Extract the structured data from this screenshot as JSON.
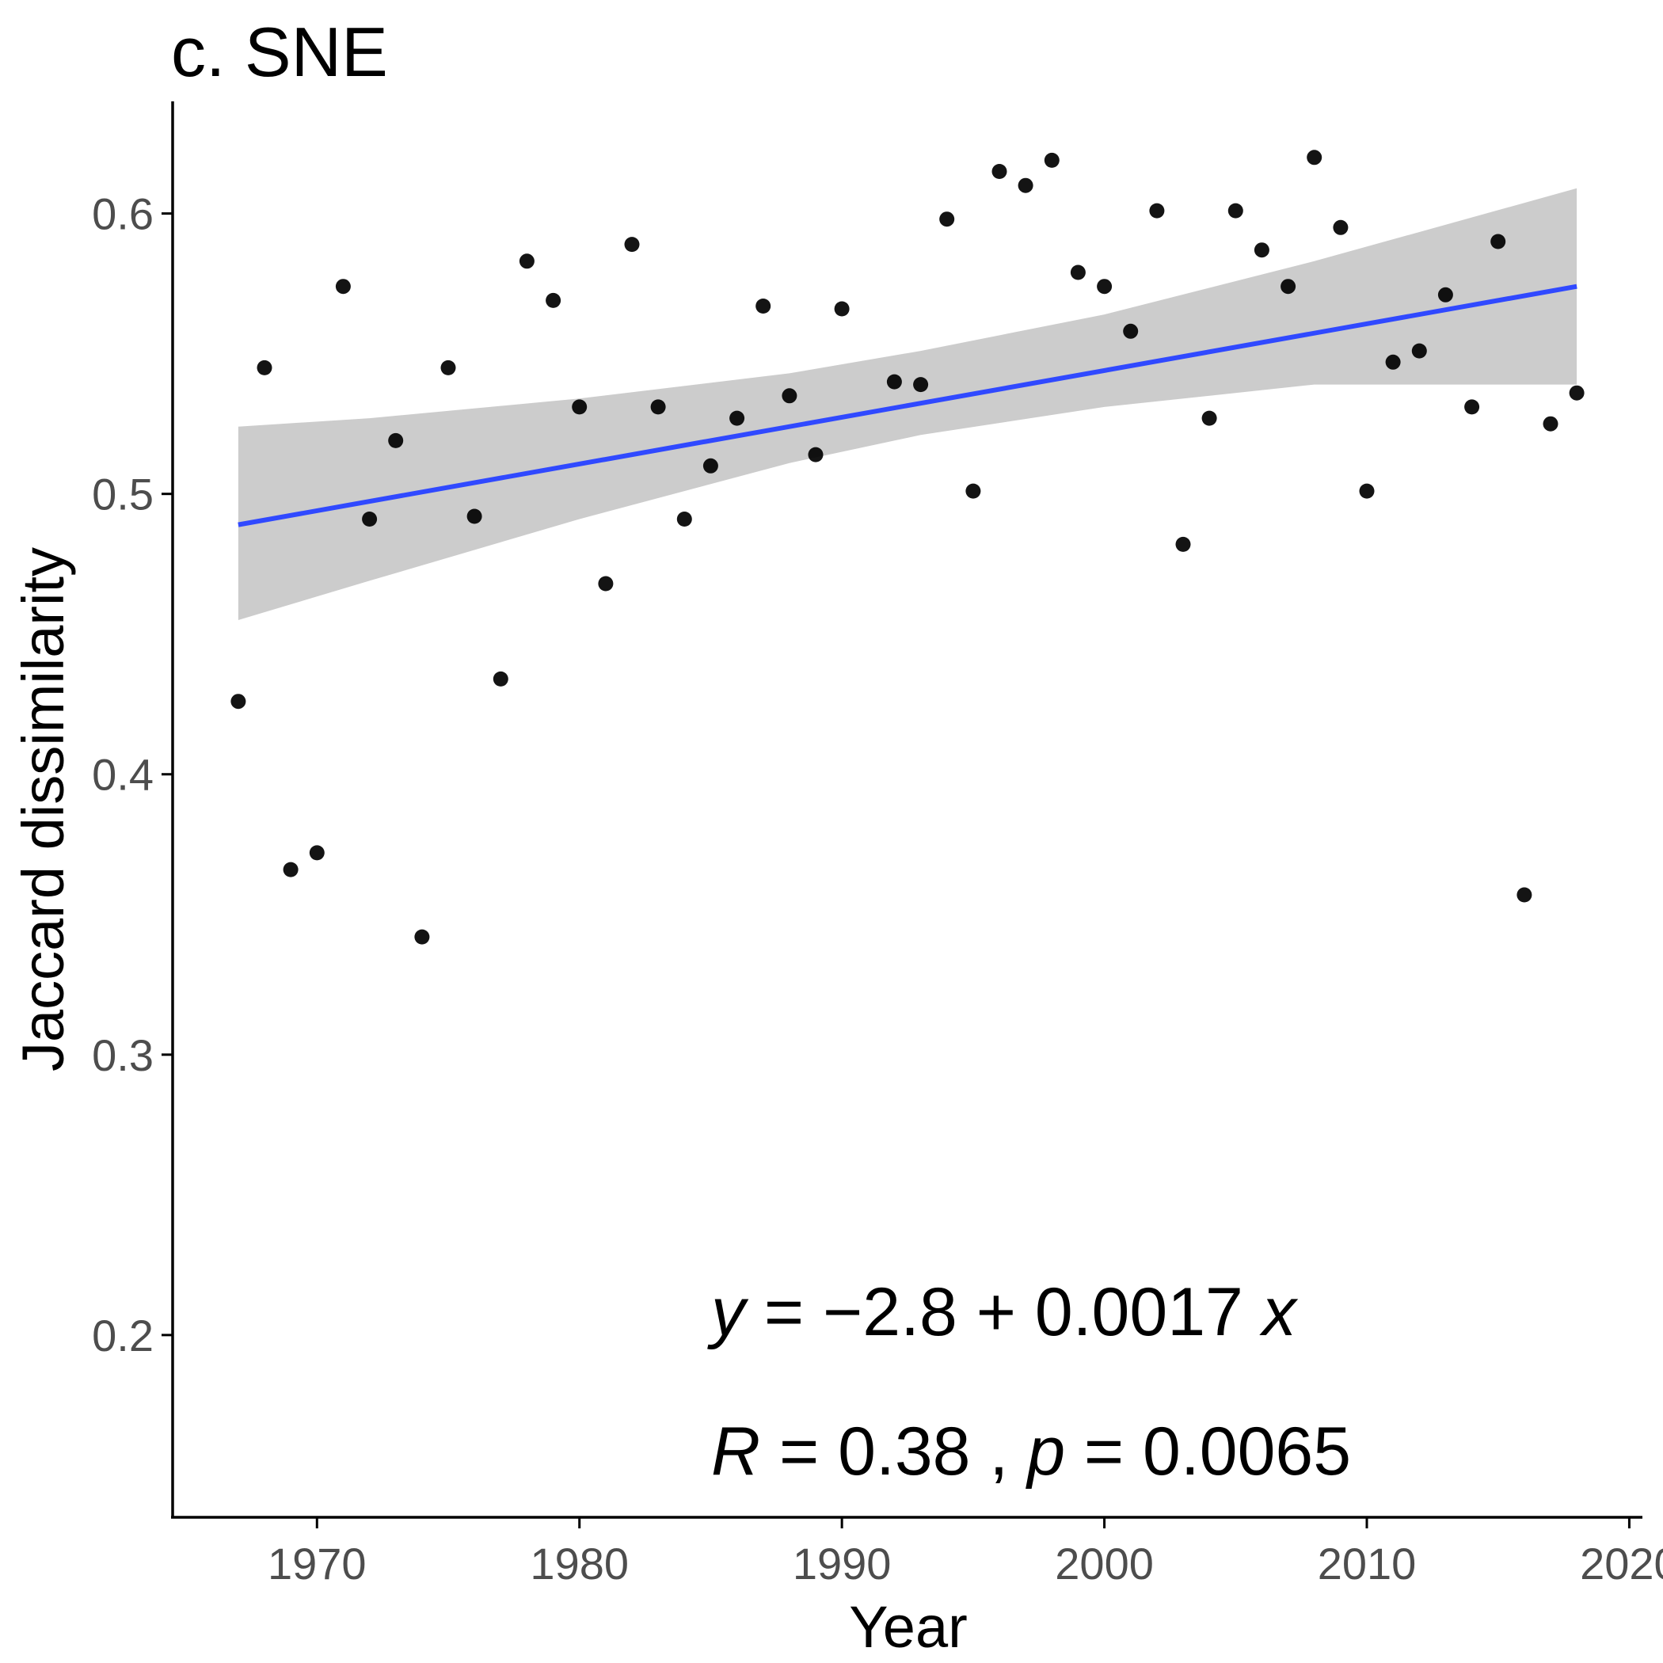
{
  "chart_data": {
    "type": "scatter",
    "title": "c. SNE",
    "xlabel": "Year",
    "ylabel": "Jaccard dissimilarity",
    "xlim": [
      1964.5,
      2020.5
    ],
    "ylim": [
      0.135,
      0.64
    ],
    "x_ticks": [
      1970,
      1980,
      1990,
      2000,
      2010,
      2020
    ],
    "x_tick_labels": [
      "1970",
      "1980",
      "1990",
      "2000",
      "2010",
      "2020"
    ],
    "y_ticks": [
      0.2,
      0.3,
      0.4,
      0.5,
      0.6
    ],
    "y_tick_labels": [
      "0.2",
      "0.3",
      "0.4",
      "0.5",
      "0.6"
    ],
    "grid": false,
    "points": {
      "x": [
        1967,
        1968,
        1969,
        1970,
        1971,
        1972,
        1973,
        1974,
        1975,
        1976,
        1977,
        1978,
        1979,
        1980,
        1981,
        1982,
        1983,
        1984,
        1985,
        1986,
        1987,
        1988,
        1989,
        1990,
        1992,
        1993,
        1994,
        1995,
        1996,
        1997,
        1998,
        1999,
        2000,
        2001,
        2002,
        2003,
        2004,
        2005,
        2006,
        2007,
        2008,
        2009,
        2010,
        2011,
        2012,
        2013,
        2014,
        2015,
        2016,
        2017,
        2018
      ],
      "y": [
        0.426,
        0.545,
        0.366,
        0.372,
        0.574,
        0.491,
        0.519,
        0.342,
        0.545,
        0.492,
        0.434,
        0.583,
        0.569,
        0.531,
        0.468,
        0.589,
        0.531,
        0.491,
        0.51,
        0.527,
        0.567,
        0.535,
        0.514,
        0.566,
        0.54,
        0.539,
        0.598,
        0.501,
        0.615,
        0.61,
        0.619,
        0.579,
        0.574,
        0.558,
        0.601,
        0.482,
        0.527,
        0.601,
        0.587,
        0.574,
        0.62,
        0.595,
        0.501,
        0.547,
        0.551,
        0.571,
        0.531,
        0.59,
        0.357,
        0.525,
        0.536
      ],
      "color": "#000000"
    },
    "fit": {
      "x": [
        1967,
        2018
      ],
      "y": [
        0.489,
        0.574
      ],
      "color": "#3049ff"
    },
    "confidence_band": {
      "x": [
        1967,
        1972,
        1980,
        1988,
        1993,
        2000,
        2008,
        2018
      ],
      "upper": [
        0.524,
        0.527,
        0.534,
        0.543,
        0.551,
        0.564,
        0.583,
        0.609
      ],
      "lower": [
        0.455,
        0.469,
        0.491,
        0.511,
        0.521,
        0.531,
        0.539,
        0.539
      ],
      "color": "#cccccc"
    },
    "annotations": {
      "equation": {
        "y_var": "y",
        "eq": " = ",
        "minus": "−",
        "intercept": "2.8",
        "plus": " + ",
        "slope": "0.0017",
        "x_var": "x"
      },
      "stats": {
        "r_var": "R",
        "r_eq": " = 0.38 , ",
        "p_var": "p",
        "p_eq": " = 0.0065"
      }
    }
  }
}
